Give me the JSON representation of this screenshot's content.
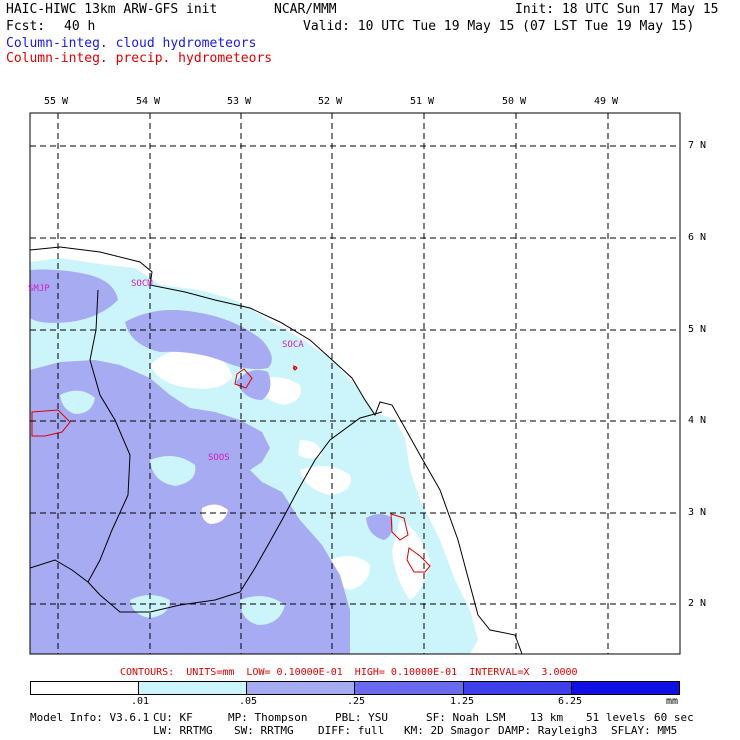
{
  "header": {
    "title": "HAIC-HIWC 13km ARW-GFS init",
    "org": "NCAR/MMM",
    "init": "Init: 18 UTC Sun 17 May 15",
    "fcst_label": "Fcst:",
    "fcst_value": "40 h",
    "valid": "Valid: 10 UTC Tue 19 May 15 (07 LST Tue 19 May 15)",
    "field1": "Column-integ. cloud hydrometeors",
    "field2": "Column-integ. precip. hydrometeors"
  },
  "map": {
    "lon_labels": [
      "55 W",
      "54 W",
      "53 W",
      "52 W",
      "51 W",
      "50 W",
      "49 W"
    ],
    "lat_labels": [
      "7 N",
      "6 N",
      "5 N",
      "4 N",
      "3 N",
      "2 N"
    ],
    "stations": [
      "SMJP",
      "SOCM",
      "SOCA",
      "SOOS"
    ]
  },
  "contours": "CONTOURS:  UNITS=mm  LOW= 0.10000E-01  HIGH= 0.10000E-01  INTERVAL=X  3.0000",
  "colorbar": {
    "ticks": [
      ".01",
      ".05",
      ".25",
      "1.25",
      "6.25"
    ],
    "units": "mm",
    "colors": [
      "#ffffff",
      "#ccf4fb",
      "#a7abf2",
      "#6b6bf0",
      "#3f3fec",
      "#1010e6"
    ]
  },
  "footer": {
    "model_info": "Model Info: V3.6.1",
    "cu": "CU: KF",
    "mp": "MP: Thompson",
    "pbl": "PBL: YSU",
    "sf": "SF: Noah LSM",
    "res": "13 km",
    "levels": "51 levels",
    "dt": "60 sec",
    "lw": "LW: RRTMG",
    "sw": "SW: RRTMG",
    "diff": "DIFF: full",
    "km": "KM: 2D Smagor",
    "damp": "DAMP: Rayleigh3",
    "sflay": "SFLAY: MM5"
  }
}
